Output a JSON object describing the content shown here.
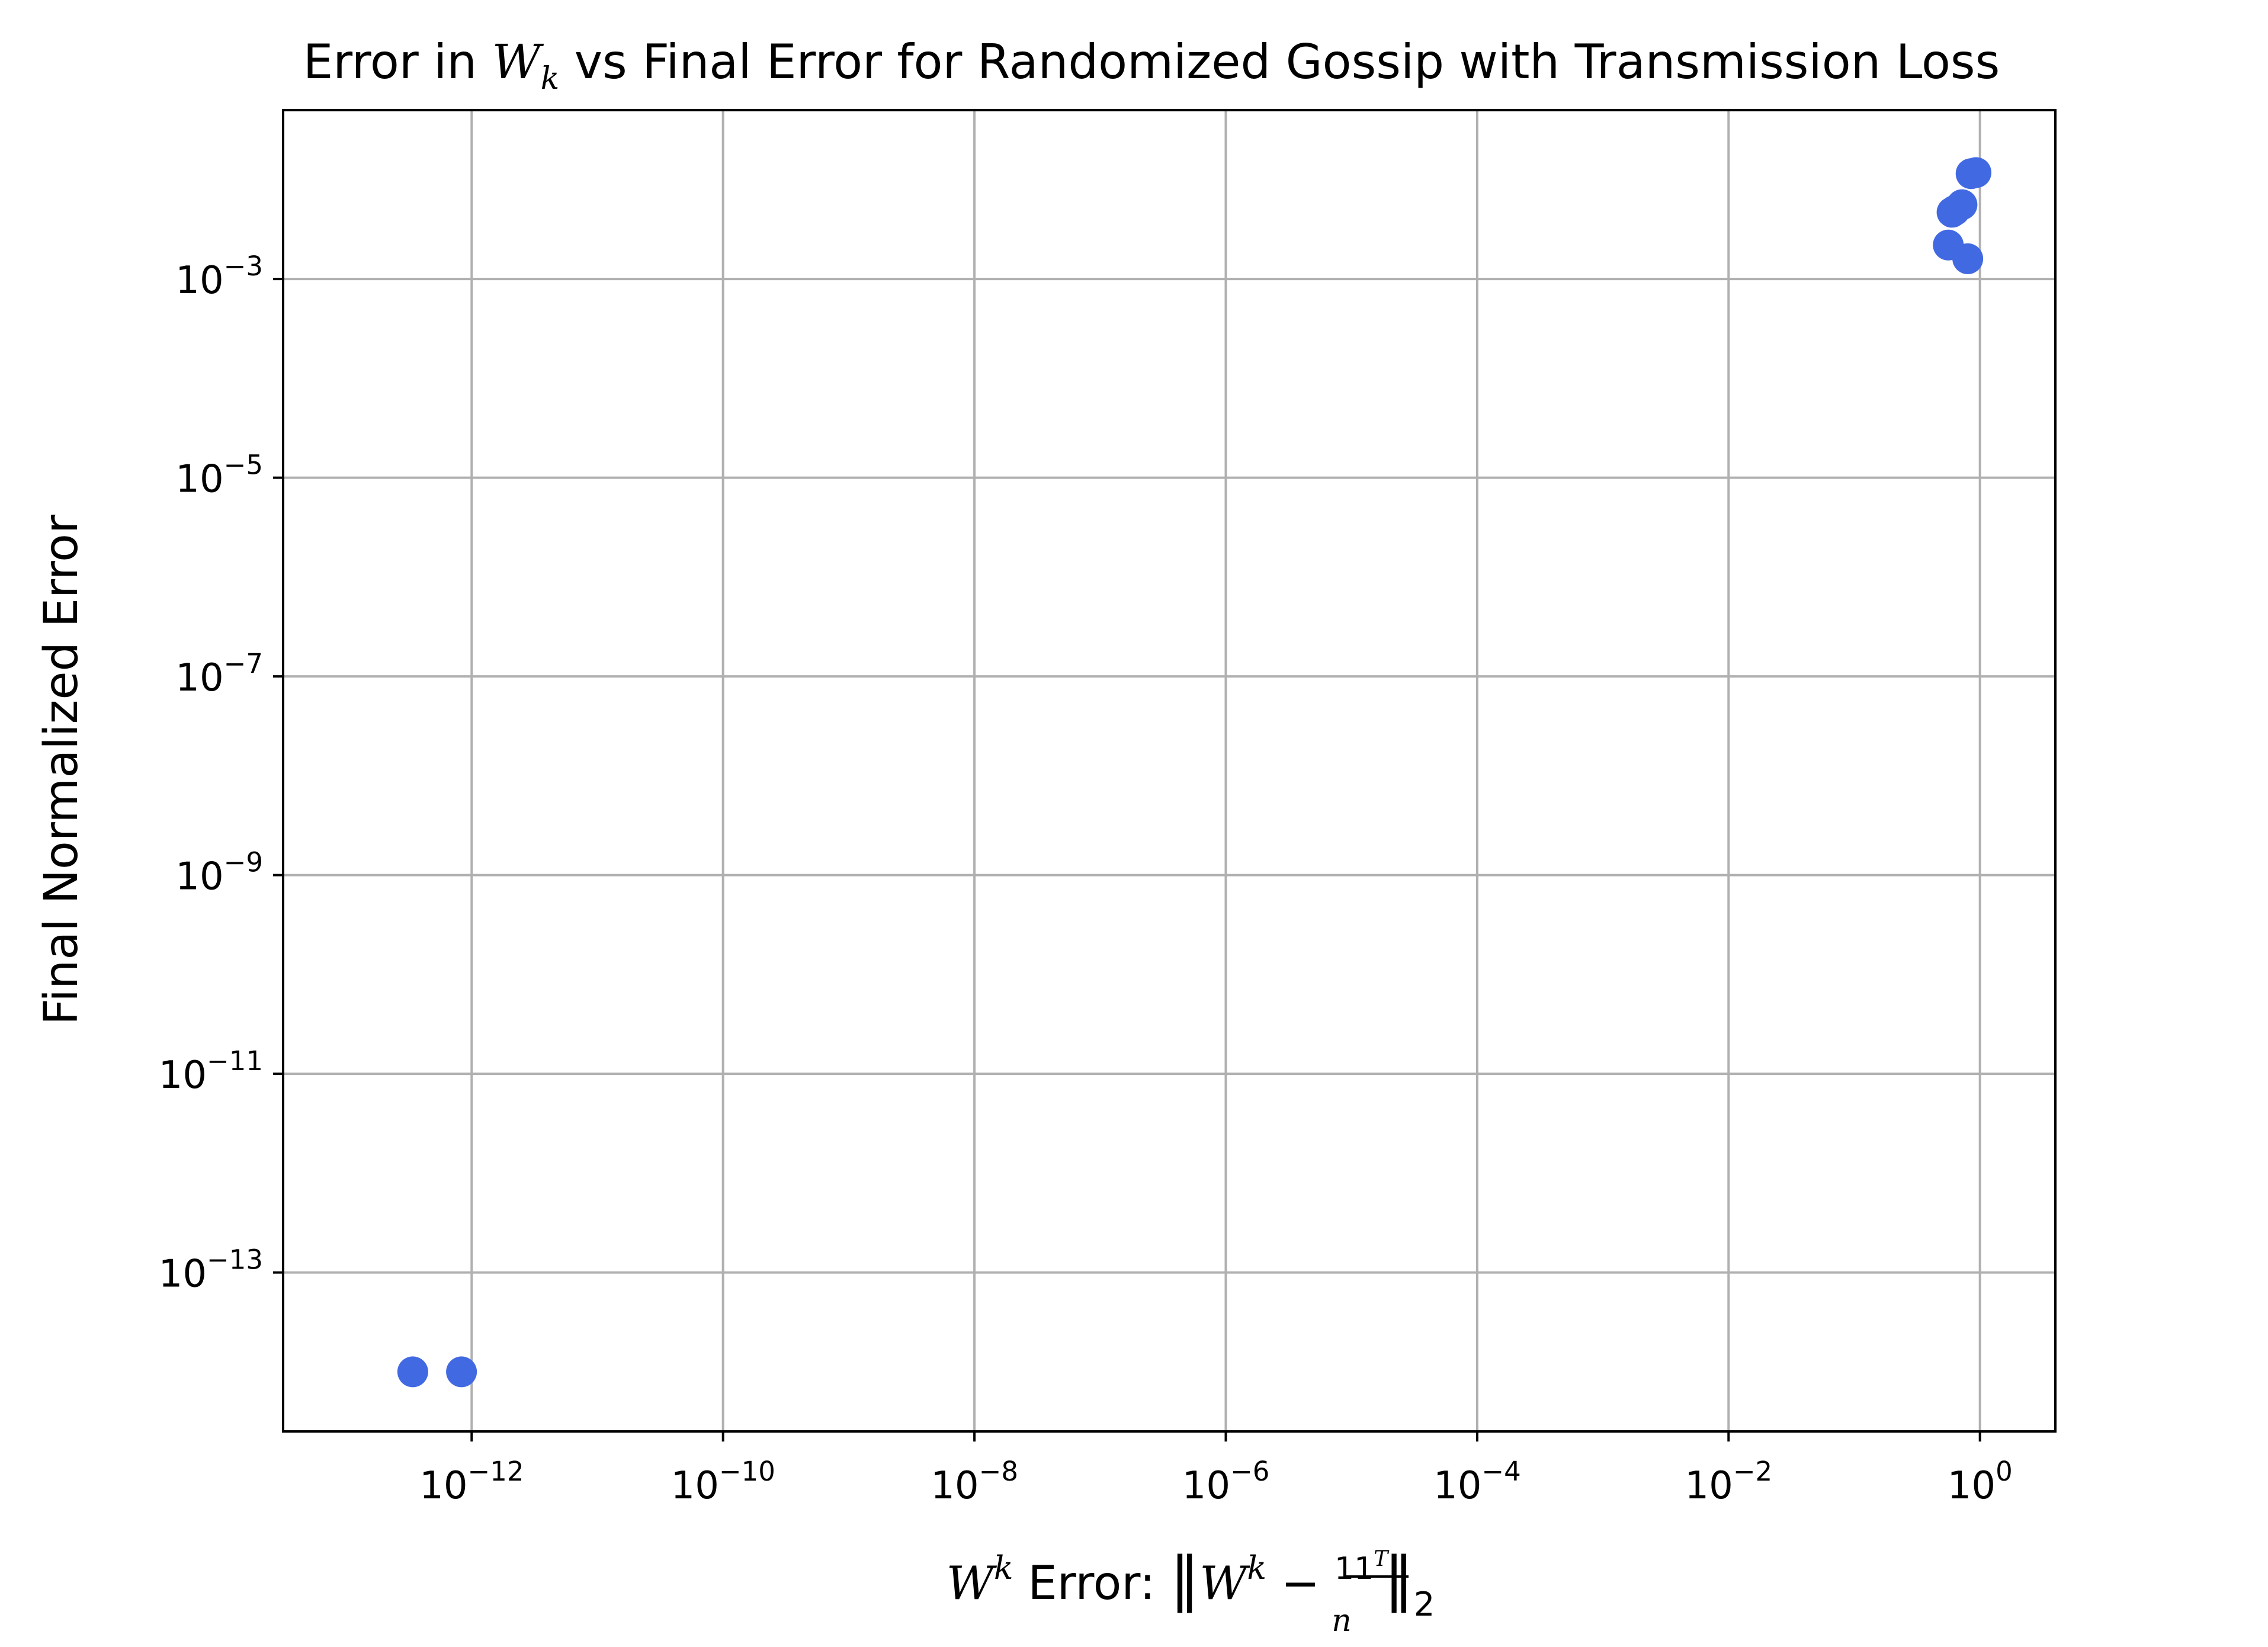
{
  "chart_data": {
    "type": "scatter",
    "title": {
      "prefix": "Error in ",
      "symbol": "W",
      "subscript": "k",
      "suffix": " vs Final Error for Randomized Gossip with Transmission Loss"
    },
    "xlabel": {
      "symbol": "W",
      "superscript": "k",
      "label": " Error: ",
      "norm_open": "‖",
      "inner_symbol": "W",
      "inner_superscript": "k",
      "minus": " − ",
      "frac_numerator": "11",
      "frac_numerator_sup": "T",
      "frac_denominator": "n",
      "norm_close": "‖",
      "norm_subscript": "2"
    },
    "ylabel": "Final Normalized Error",
    "x_scale": "log",
    "y_scale": "log",
    "x_ticks": [
      {
        "base": "10",
        "exp": "−12",
        "value": -12
      },
      {
        "base": "10",
        "exp": "−10",
        "value": -10
      },
      {
        "base": "10",
        "exp": "−8",
        "value": -8
      },
      {
        "base": "10",
        "exp": "−6",
        "value": -6
      },
      {
        "base": "10",
        "exp": "−4",
        "value": -4
      },
      {
        "base": "10",
        "exp": "−2",
        "value": -2
      },
      {
        "base": "10",
        "exp": "0",
        "value": 0
      }
    ],
    "y_ticks": [
      {
        "base": "10",
        "exp": "−3",
        "value": -3
      },
      {
        "base": "10",
        "exp": "−5",
        "value": -5
      },
      {
        "base": "10",
        "exp": "−7",
        "value": -7
      },
      {
        "base": "10",
        "exp": "−9",
        "value": -9
      },
      {
        "base": "10",
        "exp": "−11",
        "value": -11
      },
      {
        "base": "10",
        "exp": "−13",
        "value": -13
      }
    ],
    "xlim_log10": [
      -13.5,
      0.6
    ],
    "ylim_log10": [
      -14.6,
      -1.3
    ],
    "grid": true,
    "marker_color": "#4169e1",
    "points": [
      {
        "x": 3.4e-13,
        "y": 1e-14
      },
      {
        "x": 8.3e-13,
        "y": 1e-14
      },
      {
        "x": 0.85,
        "y": 0.0115
      },
      {
        "x": 0.93,
        "y": 0.0118
      },
      {
        "x": 0.72,
        "y": 0.0056
      },
      {
        "x": 0.6,
        "y": 0.0047
      },
      {
        "x": 0.63,
        "y": 0.0049
      },
      {
        "x": 0.56,
        "y": 0.0022
      },
      {
        "x": 0.8,
        "y": 0.0016
      }
    ]
  }
}
